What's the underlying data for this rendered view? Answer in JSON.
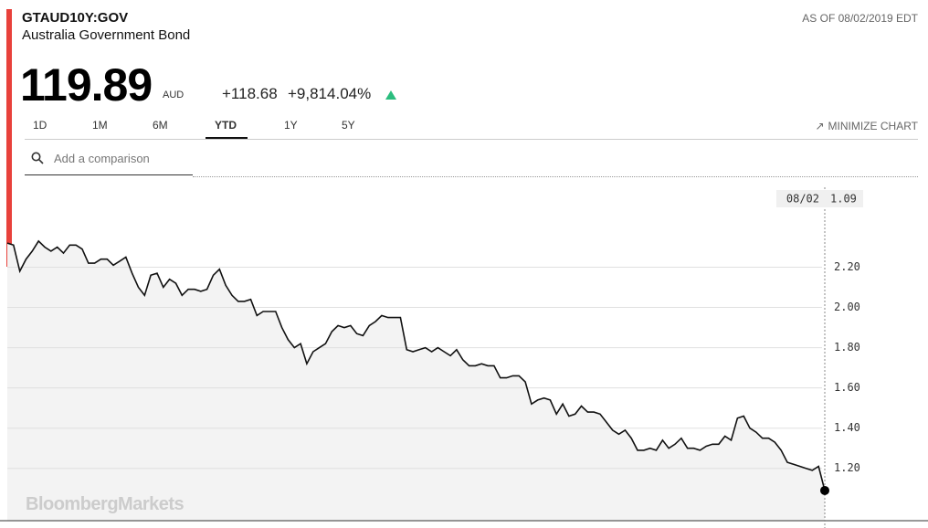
{
  "header": {
    "ticker": "GTAUD10Y:GOV",
    "name": "Australia Government Bond",
    "as_of": "AS OF 08/02/2019 EDT",
    "price": "119.89",
    "currency": "AUD",
    "change": "+118.68",
    "change_pct": "+9,814.04%"
  },
  "tabs": [
    "1D",
    "1M",
    "6M",
    "YTD",
    "1Y",
    "5Y"
  ],
  "active_tab": 3,
  "minimize": "MINIMIZE CHART",
  "comparison_placeholder": "Add a comparison",
  "watermark": "BloombergMarkets",
  "chart_data": {
    "type": "line",
    "last_date": "08/02",
    "color": "#111111",
    "area_color": "#f3f3f3",
    "grid": true,
    "ylim": [
      0.94,
      2.62
    ],
    "yticks": [
      {
        "value": 1.2,
        "label": "1.20"
      },
      {
        "value": 1.4,
        "label": "1.40"
      },
      {
        "value": 1.6,
        "label": "1.60"
      },
      {
        "value": 1.8,
        "label": "1.80"
      },
      {
        "value": 2.0,
        "label": "2.00"
      },
      {
        "value": 2.2,
        "label": "2.20"
      }
    ],
    "values": [
      2.32,
      2.31,
      2.18,
      2.24,
      2.28,
      2.33,
      2.3,
      2.28,
      2.3,
      2.27,
      2.31,
      2.31,
      2.29,
      2.22,
      2.22,
      2.24,
      2.24,
      2.21,
      2.23,
      2.25,
      2.17,
      2.1,
      2.06,
      2.16,
      2.17,
      2.1,
      2.14,
      2.12,
      2.06,
      2.09,
      2.09,
      2.08,
      2.09,
      2.16,
      2.19,
      2.11,
      2.06,
      2.03,
      2.03,
      2.04,
      1.96,
      1.98,
      1.98,
      1.98,
      1.9,
      1.84,
      1.8,
      1.82,
      1.72,
      1.78,
      1.8,
      1.82,
      1.88,
      1.91,
      1.9,
      1.91,
      1.87,
      1.86,
      1.91,
      1.93,
      1.96,
      1.95,
      1.95,
      1.95,
      1.79,
      1.78,
      1.79,
      1.8,
      1.78,
      1.8,
      1.78,
      1.76,
      1.79,
      1.74,
      1.71,
      1.71,
      1.72,
      1.71,
      1.71,
      1.65,
      1.65,
      1.66,
      1.66,
      1.63,
      1.52,
      1.54,
      1.55,
      1.54,
      1.47,
      1.52,
      1.46,
      1.47,
      1.51,
      1.48,
      1.48,
      1.47,
      1.43,
      1.39,
      1.37,
      1.39,
      1.35,
      1.29,
      1.29,
      1.3,
      1.29,
      1.34,
      1.3,
      1.32,
      1.35,
      1.3,
      1.3,
      1.29,
      1.31,
      1.32,
      1.32,
      1.36,
      1.34,
      1.45,
      1.46,
      1.4,
      1.38,
      1.35,
      1.35,
      1.33,
      1.29,
      1.23,
      1.22,
      1.21,
      1.2,
      1.19,
      1.21,
      1.09
    ]
  }
}
